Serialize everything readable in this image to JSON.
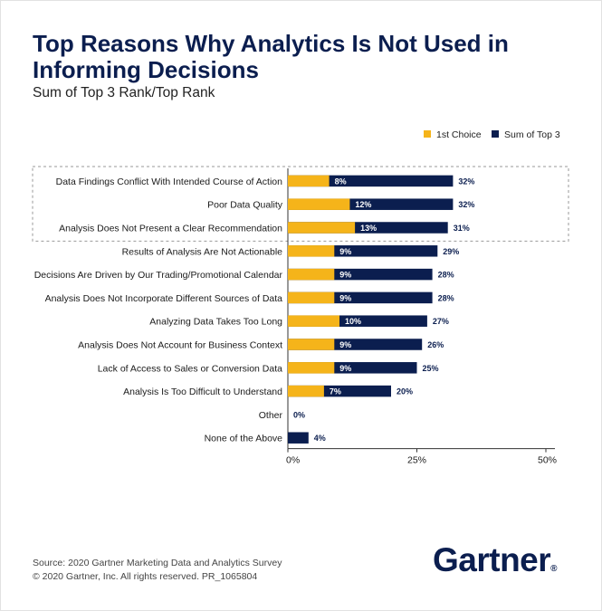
{
  "title": "Top Reasons Why Analytics Is Not Used in Informing Decisions",
  "subtitle": "Sum of Top 3 Rank/Top Rank",
  "legend": [
    {
      "label": "1st Choice",
      "color": "#F5B41A"
    },
    {
      "label": "Sum of Top 3",
      "color": "#0B1E4F"
    }
  ],
  "chart_data": {
    "type": "bar",
    "orientation": "horizontal",
    "categories": [
      "Data Findings Conflict With Intended Course of Action",
      "Poor Data Quality",
      "Analysis Does Not Present a Clear Recommendation",
      "Results of Analysis Are Not Actionable",
      "Decisions Are Driven by Our Trading/Promotional Calendar",
      "Analysis Does Not Incorporate Different Sources of Data",
      "Analyzing Data Takes Too Long",
      "Analysis Does Not Account for Business Context",
      "Lack of Access to Sales or Conversion Data",
      "Analysis Is Too Difficult to Understand",
      "Other",
      "None of the Above"
    ],
    "series": [
      {
        "name": "Sum of Top 3",
        "color": "#0B1E4F",
        "values": [
          32,
          32,
          31,
          29,
          28,
          28,
          27,
          26,
          25,
          20,
          0,
          4
        ],
        "labels": [
          "32%",
          "32%",
          "31%",
          "29%",
          "28%",
          "28%",
          "27%",
          "26%",
          "25%",
          "20%",
          "0%",
          "4%"
        ]
      },
      {
        "name": "1st Choice",
        "color": "#F5B41A",
        "values": [
          8,
          12,
          13,
          9,
          9,
          9,
          10,
          9,
          9,
          7,
          null,
          null
        ],
        "labels": [
          "8%",
          "12%",
          "13%",
          "9%",
          "9%",
          "9%",
          "10%",
          "9%",
          "9%",
          "7%",
          null,
          null
        ]
      }
    ],
    "xlim": [
      0,
      50
    ],
    "xticks": [
      0,
      25,
      50
    ],
    "xtick_labels": [
      "0%",
      "25%",
      "50%"
    ],
    "highlighted_rows": 3,
    "legend_position": "top-right"
  },
  "footer": {
    "source": "Source: 2020 Gartner Marketing Data and Analytics Survey",
    "copyright": "© 2020 Gartner, Inc. All rights reserved. PR_1065804"
  },
  "logo": {
    "text": "Gartner",
    "mark": "®"
  }
}
